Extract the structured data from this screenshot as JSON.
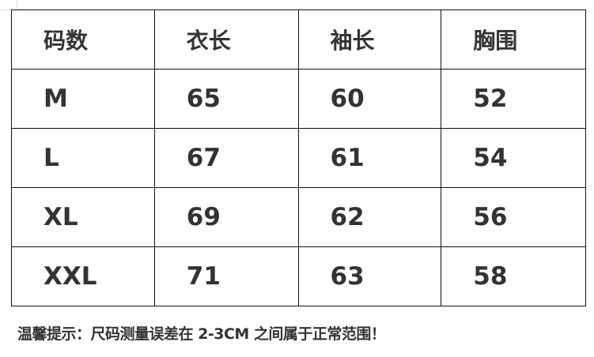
{
  "table": {
    "headers": [
      "码数",
      "衣长",
      "袖长",
      "胸围"
    ],
    "rows": [
      [
        "M",
        "65",
        "60",
        "52"
      ],
      [
        "L",
        "67",
        "61",
        "54"
      ],
      [
        "XL",
        "69",
        "62",
        "56"
      ],
      [
        "XXL",
        "71",
        "63",
        "58"
      ]
    ]
  },
  "note": "温馨提示：尺码测量误差在 2-3CM 之间属于正常范围！"
}
